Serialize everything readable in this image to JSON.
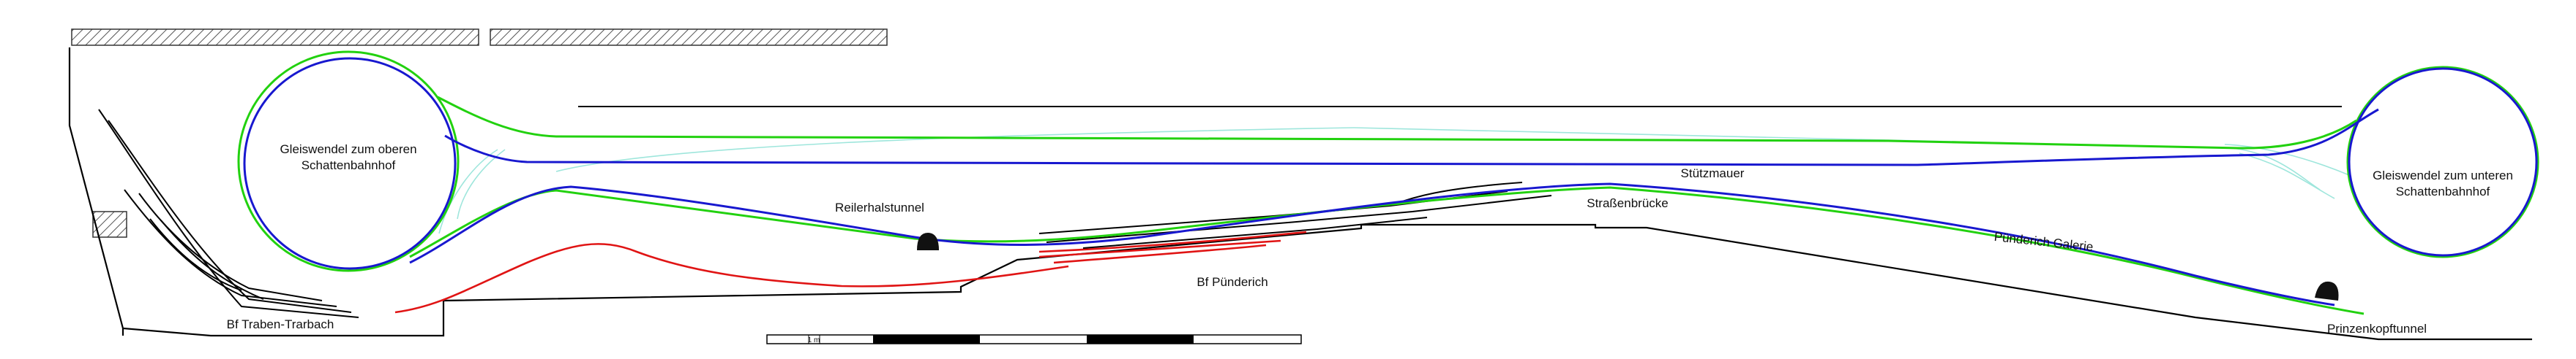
{
  "colors": {
    "upper_track": "#22d10f",
    "lower_track": "#1818cf",
    "station_track": "#e01414",
    "hidden_track": "#9ee6dc",
    "outline": "#000000",
    "hatch": "#555555"
  },
  "labels": {
    "helix_left": [
      "Gleiswendel zum oberen",
      "Schattenbahnhof"
    ],
    "helix_right": [
      "Gleiswendel zum unteren",
      "Schattenbahnhof"
    ],
    "reilerhals_tunnel": "Reilerhalstunnel",
    "stuetzmauer": "Stützmauer",
    "strassenbruecke": "Straßenbrücke",
    "puenderich_galerie": "Pünderich Galerie",
    "bf_puenderich": "Bf Pünderich",
    "bf_traben_trarbach": "Bf Traben-Trarbach",
    "prinzenkopf_tunnel": "Prinzenkopftunnel",
    "scale_unit": "1 m"
  }
}
